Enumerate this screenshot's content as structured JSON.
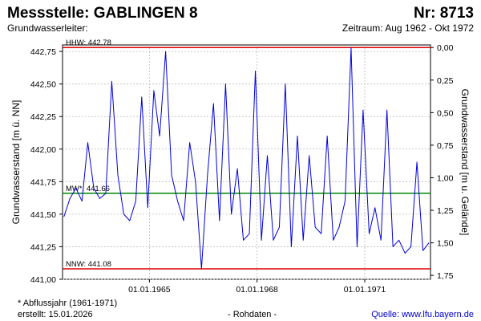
{
  "header": {
    "station_label": "Messstelle: GABLINGEN 8",
    "number_label": "Nr: 8713",
    "aquifer_label": "Grundwasserleiter:",
    "period_label": "Zeitraum: Aug 1962 - Okt 1972"
  },
  "footer": {
    "footnote": "* Abflussjahr (1961-1971)",
    "created": "erstellt:  15.01.2026",
    "raw": "- Rohdaten -",
    "source": "Quelle:  www.lfu.bayern.de"
  },
  "colors": {
    "series": "#0000dd",
    "hhw": "#dd0000",
    "nnw": "#dd0000",
    "mw": "#008800",
    "grid": "#bbbbbb",
    "source_link": "#0000cc"
  },
  "chart_data": {
    "type": "line",
    "ylabel": "Grundwasserstand [m ü. NN]",
    "y2label": "Grundwasserstand [m u. Gelände]",
    "ylim": [
      441.0,
      442.8
    ],
    "y_ticks": [
      "441,00",
      "441,25",
      "441,50",
      "441,75",
      "442,00",
      "442,25",
      "442,50",
      "442,75"
    ],
    "y_tick_values": [
      441.0,
      441.25,
      441.5,
      441.75,
      442.0,
      442.25,
      442.5,
      442.75
    ],
    "y2_ticks": [
      "0,00",
      "0,25",
      "0,50",
      "0,75",
      "1,00",
      "1,25",
      "1,50",
      "1,75"
    ],
    "y2_zero_at": 442.78,
    "xlim": [
      "1962-08-01",
      "1972-10-31"
    ],
    "x_ticks": [
      "01.01.1965",
      "01.01.1968",
      "01.01.1971"
    ],
    "x_tick_dates": [
      "1965-01-01",
      "1968-01-01",
      "1971-01-01"
    ],
    "grid": true,
    "reference_lines": [
      {
        "name": "HHW",
        "label": "HHW: 442.78",
        "value": 442.78
      },
      {
        "name": "MW",
        "label": "MW*: 441.66",
        "value": 441.66
      },
      {
        "name": "NNW",
        "label": "NNW: 441.08",
        "value": 441.08
      }
    ],
    "series": [
      {
        "x": [
          "1962-08",
          "1962-10",
          "1962-12",
          "1963-02",
          "1963-04",
          "1963-06",
          "1963-08",
          "1963-10",
          "1963-12",
          "1964-02",
          "1964-04",
          "1964-06",
          "1964-08",
          "1964-10",
          "1964-12",
          "1965-02",
          "1965-04",
          "1965-06",
          "1965-08",
          "1965-10",
          "1965-12",
          "1966-02",
          "1966-04",
          "1966-06",
          "1966-08",
          "1966-10",
          "1966-12",
          "1967-02",
          "1967-04",
          "1967-06",
          "1967-08",
          "1967-10",
          "1967-12",
          "1968-02",
          "1968-04",
          "1968-06",
          "1968-08",
          "1968-10",
          "1968-12",
          "1969-02",
          "1969-04",
          "1969-06",
          "1969-08",
          "1969-10",
          "1969-12",
          "1970-02",
          "1970-04",
          "1970-06",
          "1970-08",
          "1970-10",
          "1970-12",
          "1971-02",
          "1971-04",
          "1971-06",
          "1971-08",
          "1971-10",
          "1971-12",
          "1972-02",
          "1972-04",
          "1972-06",
          "1972-08",
          "1972-10"
        ],
        "y": [
          441.48,
          441.62,
          441.7,
          441.6,
          442.05,
          441.7,
          441.62,
          441.66,
          442.52,
          441.8,
          441.5,
          441.45,
          441.6,
          442.4,
          441.55,
          442.45,
          442.1,
          442.75,
          441.8,
          441.6,
          441.45,
          442.05,
          441.75,
          441.08,
          441.8,
          442.35,
          441.45,
          442.5,
          441.5,
          441.85,
          441.3,
          441.35,
          442.6,
          441.3,
          441.95,
          441.3,
          441.4,
          442.5,
          441.25,
          442.1,
          441.3,
          441.95,
          441.4,
          441.35,
          442.1,
          441.3,
          441.4,
          441.6,
          442.78,
          441.25,
          442.3,
          441.35,
          441.55,
          441.3,
          442.3,
          441.25,
          441.3,
          441.2,
          441.25,
          441.9,
          441.22,
          441.28
        ]
      }
    ]
  }
}
